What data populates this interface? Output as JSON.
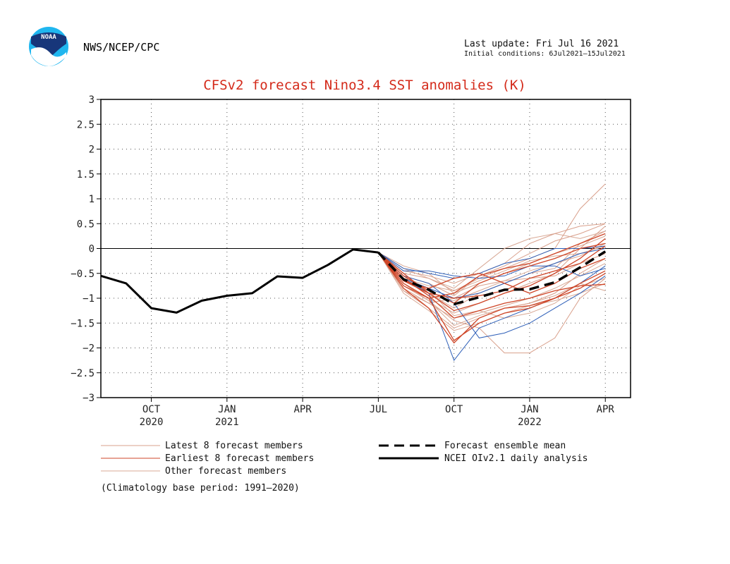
{
  "header": {
    "org": "NWS/NCEP/CPC",
    "logo_text": "NOAA",
    "last_update": "Last update: Fri Jul 16 2021",
    "initial_conditions": "Initial conditions: 6Jul2021–15Jul2021"
  },
  "colors": {
    "title": "#d42a1a",
    "latest": "#d9a08c",
    "earliest": "#cf4628",
    "other": "#d8a895",
    "blue": "#2e5fb8",
    "observed": "#000000",
    "mean": "#000000",
    "grid": "#555555",
    "logo_blue": "#1fb6ef",
    "logo_navy": "#17367a"
  },
  "legend": {
    "latest": "Latest 8 forecast members",
    "earliest": "Earliest 8 forecast members",
    "other": "Other forecast members",
    "mean": "Forecast ensemble mean",
    "observed": "NCEI OIv2.1 daily analysis",
    "climatology": "(Climatology base period: 1991–2020)"
  },
  "chart_data": {
    "type": "line",
    "title": "CFSv2 forecast Nino3.4 SST anomalies (K)",
    "xlabel": "",
    "ylabel": "",
    "ylim": [
      -3,
      3
    ],
    "yticks": [
      3,
      2.5,
      2,
      1.5,
      1,
      0.5,
      0,
      -0.5,
      -1,
      -1.5,
      -2,
      -2.5,
      -3
    ],
    "ytick_labels": [
      "3",
      "2.5",
      "2",
      "1.5",
      "1",
      "0.5",
      "0",
      "−0.5",
      "−1",
      "−1.5",
      "−2",
      "−2.5",
      "−3"
    ],
    "xlim": [
      0,
      21
    ],
    "xticks": [
      {
        "x": 2,
        "label": "OCT",
        "year": "2020"
      },
      {
        "x": 5,
        "label": "JAN",
        "year": "2021"
      },
      {
        "x": 8,
        "label": "APR",
        "year": ""
      },
      {
        "x": 11,
        "label": "JUL",
        "year": ""
      },
      {
        "x": 14,
        "label": "OCT",
        "year": ""
      },
      {
        "x": 17,
        "label": "JAN",
        "year": "2022"
      },
      {
        "x": 20,
        "label": "APR",
        "year": ""
      }
    ],
    "observed": {
      "name": "NCEI OIv2.1 daily analysis",
      "x": [
        0,
        1,
        2,
        3,
        4,
        5,
        6,
        7,
        8,
        9,
        10,
        11
      ],
      "y": [
        -0.55,
        -0.7,
        -1.2,
        -1.29,
        -1.05,
        -0.95,
        -0.9,
        -0.56,
        -0.59,
        -0.33,
        -0.02,
        -0.08
      ]
    },
    "ensemble_mean": {
      "name": "Forecast ensemble mean",
      "x": [
        11,
        12,
        13,
        14,
        15,
        16,
        17,
        18,
        19,
        20
      ],
      "y": [
        -0.08,
        -0.62,
        -0.83,
        -1.12,
        -0.98,
        -0.83,
        -0.82,
        -0.68,
        -0.38,
        -0.06
      ]
    },
    "forecast_x": [
      11,
      12,
      13,
      14,
      15,
      16,
      17,
      18,
      19,
      20
    ],
    "members": [
      {
        "group": "latest",
        "y": [
          -0.08,
          -0.55,
          -0.7,
          -0.95,
          -0.55,
          -0.35,
          -0.1,
          0.15,
          0.3,
          0.5
        ]
      },
      {
        "group": "latest",
        "y": [
          -0.08,
          -0.5,
          -0.6,
          -0.85,
          -0.6,
          -0.4,
          -0.2,
          0.0,
          0.8,
          1.3
        ]
      },
      {
        "group": "latest",
        "y": [
          -0.08,
          -0.7,
          -1.0,
          -1.3,
          -1.1,
          -0.9,
          -0.7,
          -0.5,
          0.0,
          0.45
        ]
      },
      {
        "group": "latest",
        "y": [
          -0.08,
          -0.85,
          -1.2,
          -1.6,
          -1.4,
          -1.2,
          -1.1,
          -0.9,
          -0.5,
          -0.2
        ]
      },
      {
        "group": "latest",
        "y": [
          -0.08,
          -0.6,
          -0.9,
          -1.2,
          -0.9,
          -0.7,
          -0.5,
          -0.4,
          0.1,
          0.35
        ]
      },
      {
        "group": "latest",
        "y": [
          -0.08,
          -0.75,
          -1.05,
          -1.45,
          -1.6,
          -2.1,
          -2.1,
          -1.8,
          -1.0,
          -0.6
        ]
      },
      {
        "group": "latest",
        "y": [
          -0.08,
          -0.45,
          -0.55,
          -0.7,
          -0.5,
          -0.3,
          0.1,
          0.3,
          0.45,
          0.5
        ]
      },
      {
        "group": "latest",
        "y": [
          -0.08,
          -0.8,
          -1.1,
          -1.0,
          -0.75,
          -0.65,
          -0.6,
          -0.55,
          -0.3,
          -0.1
        ]
      },
      {
        "group": "earliest",
        "y": [
          -0.08,
          -0.65,
          -0.9,
          -1.25,
          -1.1,
          -0.9,
          -0.75,
          -0.5,
          -0.2,
          0.2
        ]
      },
      {
        "group": "earliest",
        "y": [
          -0.08,
          -0.7,
          -1.0,
          -1.85,
          -1.5,
          -1.3,
          -1.2,
          -1.0,
          -0.7,
          -0.45
        ]
      },
      {
        "group": "earliest",
        "y": [
          -0.08,
          -0.55,
          -0.85,
          -1.1,
          -0.7,
          -0.5,
          -0.35,
          -0.2,
          0.0,
          0.1
        ]
      },
      {
        "group": "earliest",
        "y": [
          -0.08,
          -0.6,
          -0.95,
          -1.4,
          -1.25,
          -1.1,
          -1.0,
          -0.85,
          -0.75,
          -0.72
        ]
      },
      {
        "group": "earliest",
        "y": [
          -0.08,
          -0.75,
          -1.0,
          -0.9,
          -0.55,
          -0.4,
          -0.3,
          -0.1,
          0.1,
          0.3
        ]
      },
      {
        "group": "earliest",
        "y": [
          -0.08,
          -0.65,
          -0.8,
          -0.6,
          -0.5,
          -0.7,
          -0.9,
          -0.7,
          -0.4,
          -0.2
        ]
      },
      {
        "group": "earliest",
        "y": [
          -0.08,
          -0.5,
          -0.9,
          -1.0,
          -0.95,
          -0.85,
          -0.6,
          -0.45,
          -0.3,
          0.05
        ]
      },
      {
        "group": "earliest",
        "y": [
          -0.08,
          -0.8,
          -1.2,
          -1.9,
          -1.4,
          -1.2,
          -1.15,
          -1.0,
          -0.8,
          -0.5
        ]
      },
      {
        "group": "blue",
        "y": [
          -0.08,
          -0.4,
          -0.5,
          -0.6,
          -0.5,
          -0.3,
          -0.2,
          0.0,
          0.0,
          0.05
        ]
      },
      {
        "group": "blue",
        "y": [
          -0.08,
          -0.6,
          -0.9,
          -2.25,
          -1.6,
          -1.4,
          -1.2,
          -1.0,
          -0.7,
          -0.35
        ]
      },
      {
        "group": "blue",
        "y": [
          -0.08,
          -0.55,
          -0.7,
          -1.1,
          -1.8,
          -1.7,
          -1.5,
          -1.2,
          -0.9,
          -0.55
        ]
      },
      {
        "group": "blue",
        "y": [
          -0.08,
          -0.45,
          -0.45,
          -0.55,
          -0.6,
          -0.55,
          -0.35,
          -0.35,
          -0.55,
          -0.4
        ]
      },
      {
        "group": "blue",
        "y": [
          -0.08,
          -0.6,
          -0.8,
          -1.0,
          -0.9,
          -0.7,
          -0.5,
          -0.3,
          -0.1,
          0.0
        ]
      },
      {
        "group": "other",
        "y": [
          -0.08,
          -0.85,
          -1.1,
          -1.4,
          -1.3,
          -1.15,
          -1.0,
          -0.8,
          -0.55,
          -0.3
        ]
      },
      {
        "group": "other",
        "y": [
          -0.08,
          -0.4,
          -0.6,
          -0.8,
          -0.4,
          0.0,
          0.2,
          0.3,
          0.2,
          0.35
        ]
      },
      {
        "group": "other",
        "y": [
          -0.08,
          -0.65,
          -0.85,
          -1.35,
          -1.25,
          -1.4,
          -1.3,
          -1.1,
          -0.75,
          -0.6
        ]
      },
      {
        "group": "other",
        "y": [
          -0.08,
          -0.55,
          -0.95,
          -1.05,
          -0.85,
          -0.65,
          -0.45,
          -0.3,
          -0.15,
          0.1
        ]
      },
      {
        "group": "other",
        "y": [
          -0.08,
          -0.7,
          -1.05,
          -1.55,
          -1.35,
          -1.2,
          -1.1,
          -0.95,
          -0.7,
          -0.85
        ]
      },
      {
        "group": "other",
        "y": [
          -0.08,
          -0.35,
          -0.5,
          -0.9,
          -0.7,
          -0.5,
          -0.3,
          -0.1,
          0.05,
          0.25
        ]
      },
      {
        "group": "other",
        "y": [
          -0.08,
          -0.9,
          -1.25,
          -1.65,
          -1.5,
          -1.3,
          -1.15,
          -1.05,
          -0.9,
          -0.7
        ]
      },
      {
        "group": "other",
        "y": [
          -0.08,
          -0.6,
          -0.75,
          -0.85,
          -0.65,
          -0.45,
          -0.25,
          -0.15,
          -0.1,
          0.05
        ]
      }
    ]
  }
}
